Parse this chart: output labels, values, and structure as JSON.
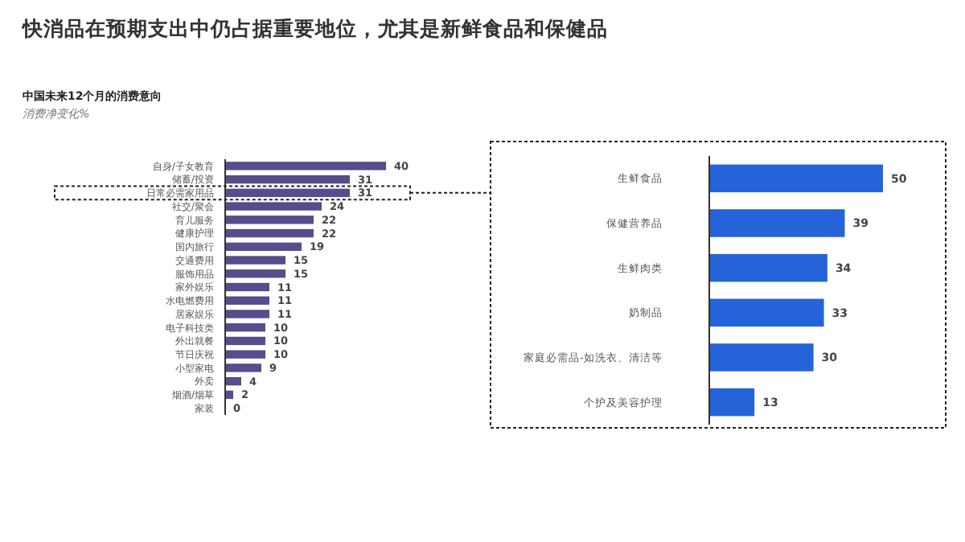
{
  "chart_data": [
    {
      "type": "bar",
      "orientation": "horizontal",
      "title": "快消品在预期支出中仍占据重要地位，尤其是新鲜食品和保健品",
      "subtitle": "中国未来12个月的消费意向",
      "xlabel": "消费净变化%",
      "data_labels": true,
      "categories": [
        "自身/子女教育",
        "储蓄/投资",
        "日常必需家用品",
        "社交/聚会",
        "育儿服务",
        "健康护理",
        "国内旅行",
        "交通费用",
        "服饰用品",
        "家外娱乐",
        "水电燃费用",
        "居家娱乐",
        "电子科技类",
        "外出就餐",
        "节日庆祝",
        "小型家电",
        "外卖",
        "烟酒/烟草",
        "家装"
      ],
      "series": [
        {
          "color": "#574c8c",
          "values": [
            40,
            31,
            31,
            24,
            22,
            22,
            19,
            15,
            15,
            11,
            11,
            11,
            10,
            10,
            10,
            9,
            4,
            2,
            0
          ]
        }
      ]
    },
    {
      "type": "bar",
      "orientation": "horizontal",
      "data_labels": true,
      "categories": [
        "生鲜食品",
        "保健营养品",
        "生鲜肉类",
        "奶制品",
        "家庭必需品-如洗衣、清洁等",
        "个护及美容护理"
      ],
      "series": [
        {
          "color": "#2563d8",
          "values": [
            50,
            39,
            34,
            33,
            30,
            13
          ]
        }
      ]
    }
  ]
}
